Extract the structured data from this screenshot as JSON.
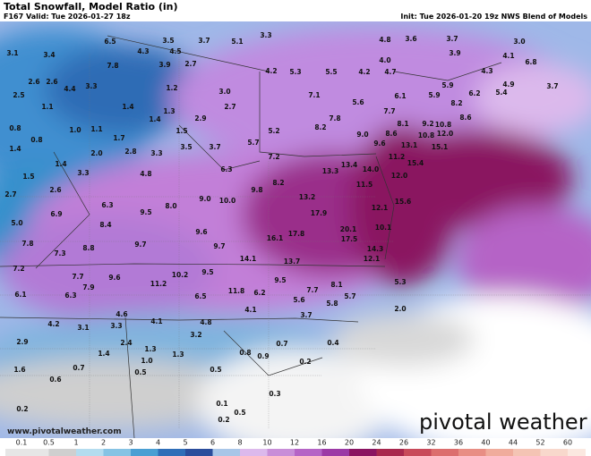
{
  "header": {
    "title": "Total Snowfall, Model Ratio (in)",
    "valid": "F167 Valid: Tue 2026-01-27 18z",
    "init": "Init: Tue 2026-01-20 19z NWS Blend of Models"
  },
  "map": {
    "labels": [
      "6.5",
      "4.3",
      "3.5",
      "3.7",
      "5.1",
      "3.3",
      "4.8",
      "3.6",
      "3.7",
      "3.0",
      "3.1",
      "3.4",
      "4.5",
      "4.1",
      "6.8",
      "7.8",
      "3.9",
      "2.7",
      "3.9",
      "5.3",
      "5.5",
      "4.2",
      "4.7",
      "4.2",
      "4.0",
      "4.3",
      "2.6",
      "2.6",
      "3.3",
      "1.2",
      "5.9",
      "6.2",
      "4.9",
      "5.4",
      "3.7",
      "2.5",
      "4.4",
      "1.4",
      "1.3",
      "3.0",
      "2.7",
      "7.1",
      "5.6",
      "6.1",
      "5.9",
      "8.2",
      "8.6",
      "1.1",
      "1.4",
      "2.9",
      "7.8",
      "7.7",
      "0.8",
      "1.0",
      "1.1",
      "8.2",
      "8.1",
      "9.2",
      "10.8",
      "5.2",
      "1.7",
      "1.5",
      "0.8",
      "9.0",
      "8.6",
      "12.0",
      "3.5",
      "3.7",
      "5.7",
      "9.6",
      "13.1",
      "10.8",
      "1.4",
      "2.0",
      "2.8",
      "3.3",
      "1.4",
      "7.2",
      "11.2",
      "15.4",
      "15.1",
      "6.3",
      "13.3",
      "13.4",
      "1.5",
      "3.3",
      "4.8",
      "8.2",
      "14.0",
      "12.0",
      "11.5",
      "9.8",
      "2.7",
      "2.6",
      "13.2",
      "10.0",
      "9.0",
      "15.6",
      "6.3",
      "8.0",
      "9.5",
      "17.9",
      "12.1",
      "6.9",
      "5.0",
      "8.4",
      "9.6",
      "20.1",
      "16.1",
      "17.8",
      "17.5",
      "10.1",
      "7.8",
      "8.8",
      "9.7",
      "9.7",
      "7.3",
      "14.3",
      "12.1",
      "14.1",
      "13.7",
      "7.2",
      "10.2",
      "9.5",
      "7.7",
      "9.6",
      "9.5",
      "11.2",
      "7.9",
      "8.1",
      "5.3",
      "6.1",
      "6.3",
      "11.8",
      "6.2",
      "7.7",
      "5.7",
      "6.5",
      "5.6",
      "5.8",
      "4.1",
      "4.6",
      "3.7",
      "4.2",
      "3.1",
      "4.1",
      "3.3",
      "4.8",
      "2.0",
      "2.9",
      "2.4",
      "3.2",
      "0.4",
      "1.3",
      "1.4",
      "0.7",
      "0.8",
      "0.9",
      "1.3",
      "1.0",
      "0.7",
      "0.2",
      "1.6",
      "0.5",
      "0.5",
      "0.6",
      "0.3",
      "0.2",
      "0.1",
      "0.2",
      "0.5"
    ]
  },
  "footer": {
    "url": "www.pivotalweather.com",
    "logo": "pivotal weather"
  },
  "colorbar": {
    "ticks": [
      0.1,
      0.5,
      1,
      2,
      3,
      4,
      5,
      6,
      8,
      10,
      12,
      16,
      20,
      24,
      26,
      32,
      36,
      40,
      44,
      52,
      60
    ],
    "colors": [
      "#e6e6e6",
      "#cfcfcf",
      "#b4dcef",
      "#86c3e4",
      "#4a9fd3",
      "#2f6eb8",
      "#2a4d9c",
      "#a8c6e8",
      "#dcb9ec",
      "#c88ed8",
      "#b564c6",
      "#9c3aa6",
      "#8a1461",
      "#a8284e",
      "#c84a5a",
      "#dc6e6e",
      "#e88e84",
      "#f0ac9c",
      "#f4c4b4",
      "#f8d8cc",
      "#fbe8e0"
    ]
  }
}
